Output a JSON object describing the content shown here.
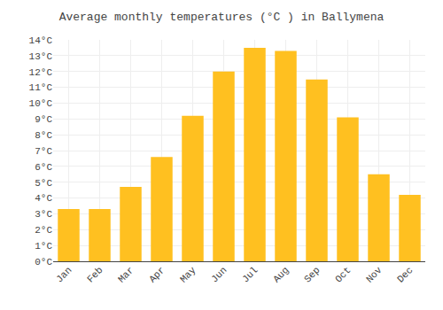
{
  "chart_data": {
    "type": "bar",
    "title": "Average monthly temperatures (°C ) in Ballymena",
    "categories": [
      "Jan",
      "Feb",
      "Mar",
      "Apr",
      "May",
      "Jun",
      "Jul",
      "Aug",
      "Sep",
      "Oct",
      "Nov",
      "Dec"
    ],
    "values": [
      3.3,
      3.3,
      4.7,
      6.6,
      9.2,
      12.0,
      13.5,
      13.3,
      11.5,
      9.1,
      5.5,
      4.2
    ],
    "color": "#FFC020",
    "ylim": [
      0,
      14
    ],
    "yticks": [
      {
        "value": 0,
        "label": "0°C"
      },
      {
        "value": 1,
        "label": "1°C"
      },
      {
        "value": 2,
        "label": "2°C"
      },
      {
        "value": 3,
        "label": "3°C"
      },
      {
        "value": 4,
        "label": "4°C"
      },
      {
        "value": 5,
        "label": "5°C"
      },
      {
        "value": 6,
        "label": "6°C"
      },
      {
        "value": 7,
        "label": "7°C"
      },
      {
        "value": 8,
        "label": "8°C"
      },
      {
        "value": 9,
        "label": "9°C"
      },
      {
        "value": 10,
        "label": "10°C"
      },
      {
        "value": 11,
        "label": "11°C"
      },
      {
        "value": 12,
        "label": "12°C"
      },
      {
        "value": 13,
        "label": "13°C"
      },
      {
        "value": 14,
        "label": "14°C"
      }
    ],
    "grid": true
  }
}
